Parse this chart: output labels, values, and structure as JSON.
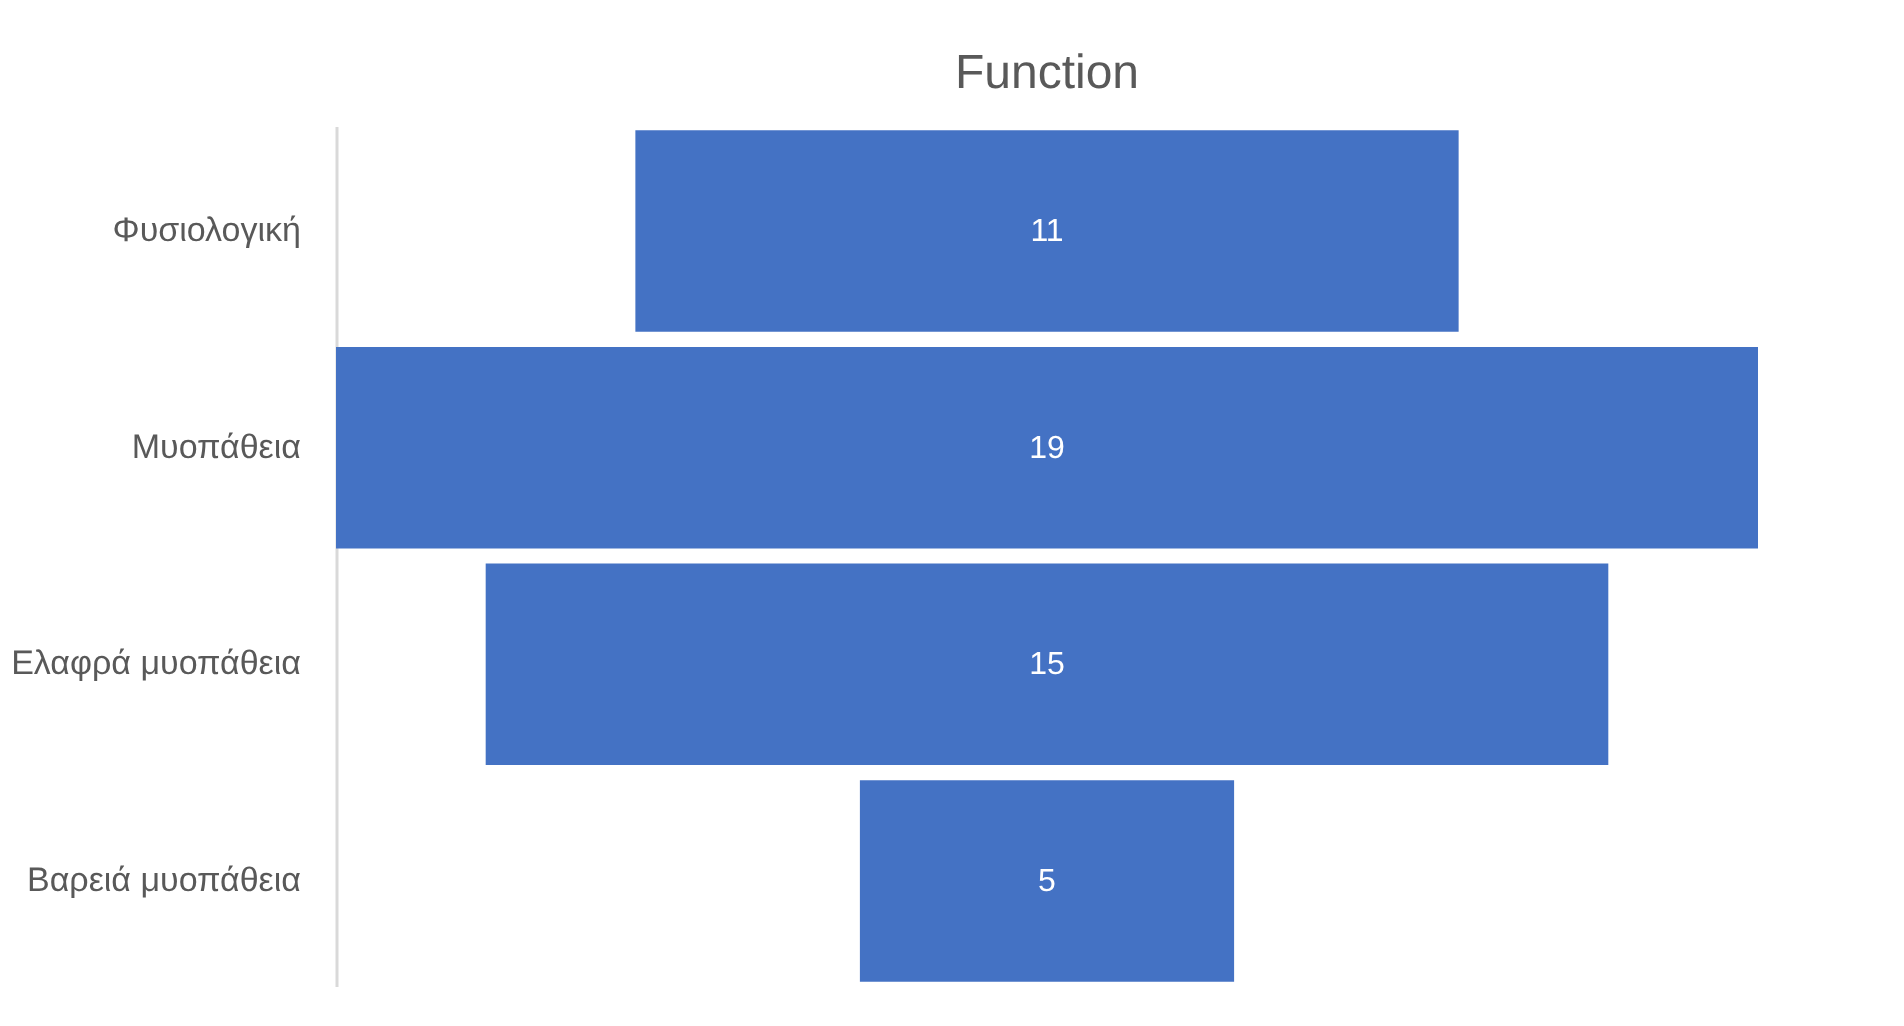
{
  "chart_data": {
    "type": "other",
    "title": "Function",
    "categories": [
      "Φυσιολογική",
      "Μυοπάθεια",
      "Ελαφρά μυοπάθεια",
      "Βαρειά μυοπάθεια"
    ],
    "values": [
      11,
      19,
      15,
      5
    ],
    "color": "#4472c4",
    "data_labels": true
  }
}
